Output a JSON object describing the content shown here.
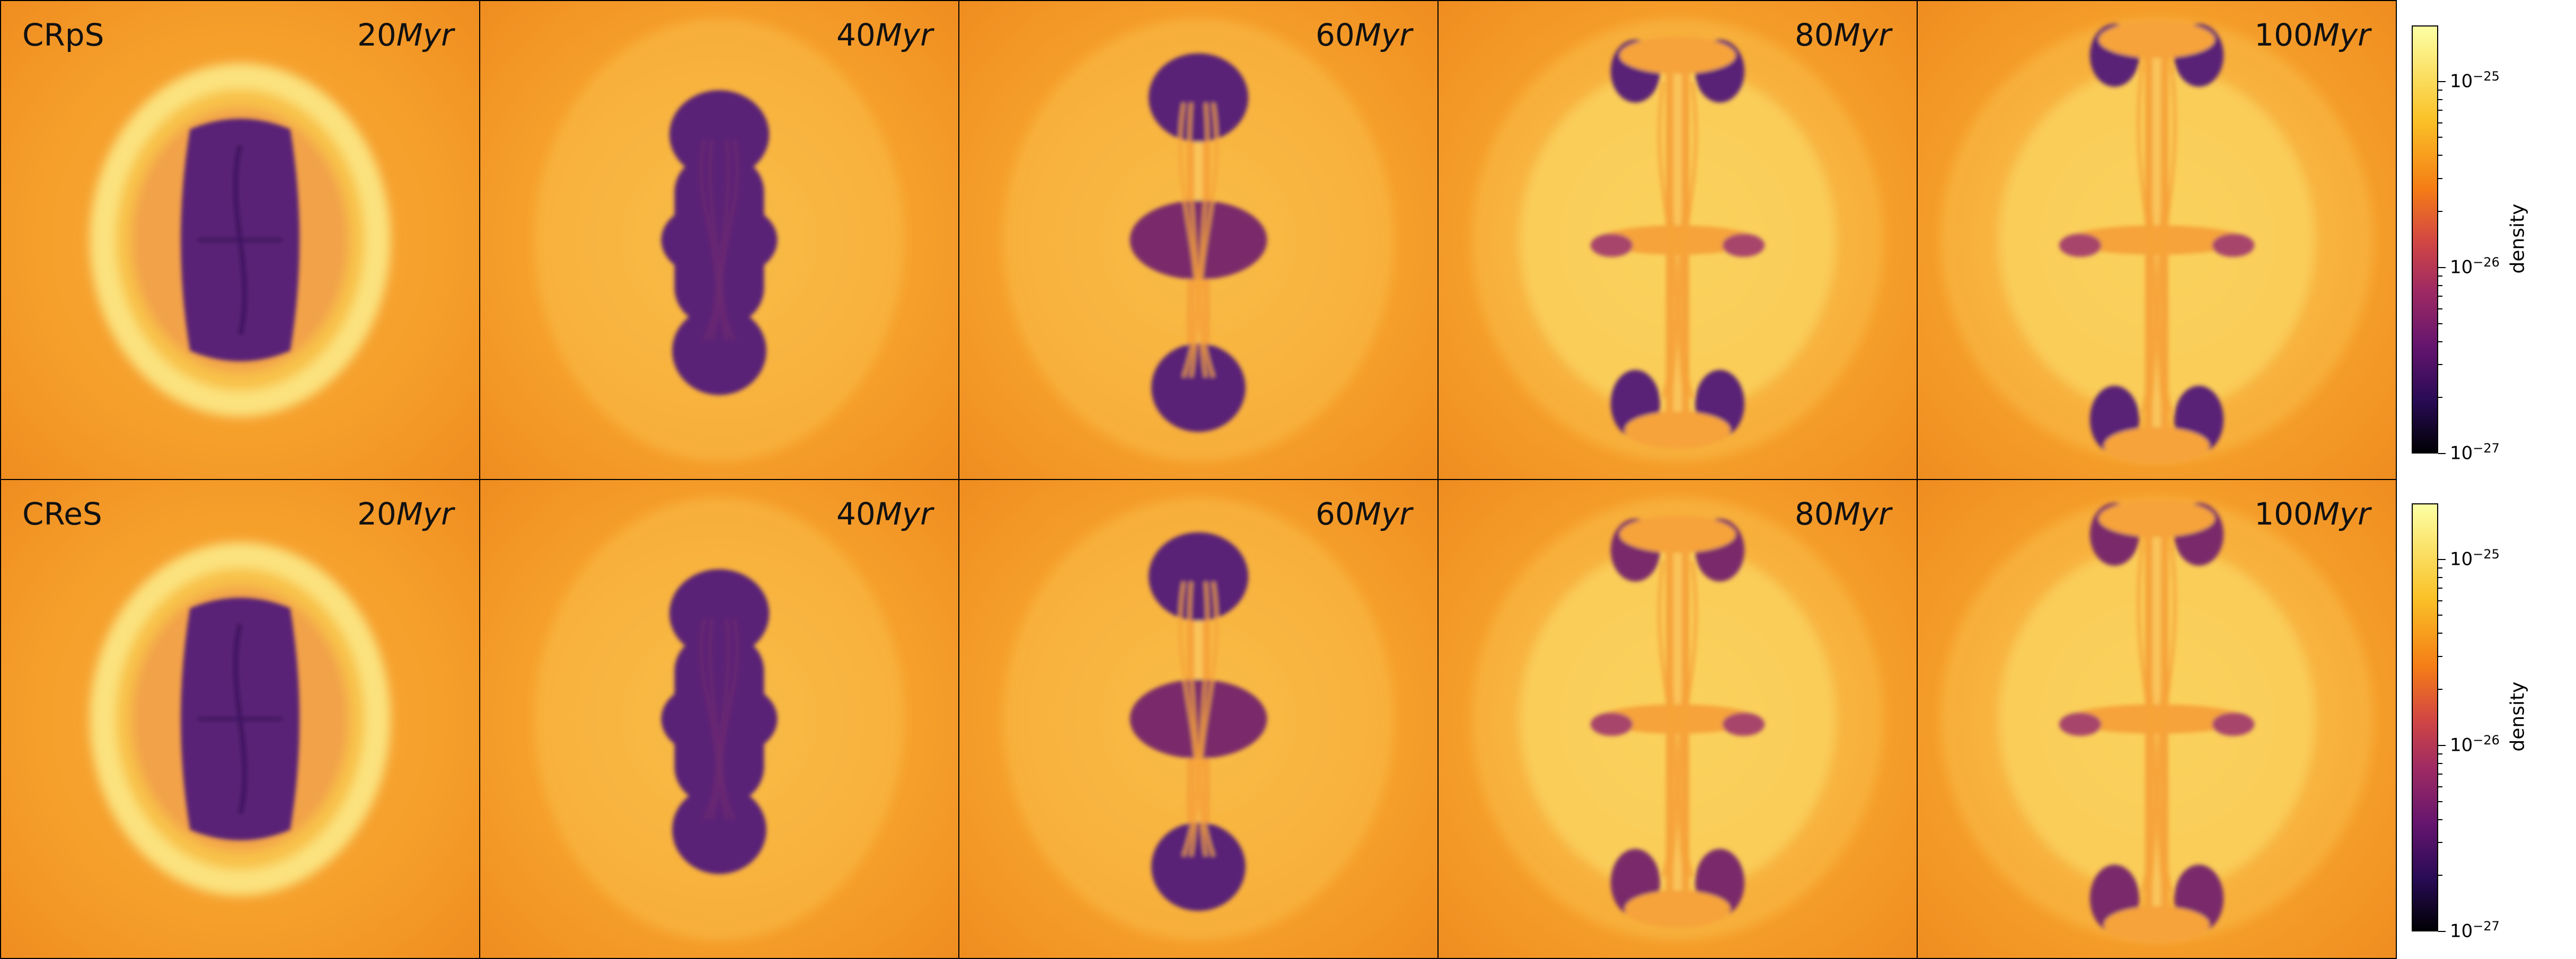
{
  "rows": [
    {
      "sim": "CRpS",
      "panels": [
        {
          "t": "20",
          "unit": "Myr",
          "stage": 0
        },
        {
          "t": "40",
          "unit": "Myr",
          "stage": 1
        },
        {
          "t": "60",
          "unit": "Myr",
          "stage": 2
        },
        {
          "t": "80",
          "unit": "Myr",
          "stage": 3
        },
        {
          "t": "100",
          "unit": "Myr",
          "stage": 4
        }
      ]
    },
    {
      "sim": "CReS",
      "panels": [
        {
          "t": "20",
          "unit": "Myr",
          "stage": 0
        },
        {
          "t": "40",
          "unit": "Myr",
          "stage": 1
        },
        {
          "t": "60",
          "unit": "Myr",
          "stage": 2
        },
        {
          "t": "80",
          "unit": "Myr",
          "stage": 3
        },
        {
          "t": "100",
          "unit": "Myr",
          "stage": 4
        }
      ]
    }
  ],
  "colorbar": {
    "label": "density",
    "colormap": "inferno",
    "scale": "log",
    "range": [
      1e-27,
      2e-25
    ],
    "ticks": [
      {
        "base": "10",
        "exp": "−25",
        "value": 1e-25
      },
      {
        "base": "10",
        "exp": "−26",
        "value": 1e-26
      },
      {
        "base": "10",
        "exp": "−27",
        "value": 1e-27
      }
    ]
  },
  "colors": {
    "background_gas": "#f59a22",
    "shell": "#fbe07a",
    "cavity": "#5b2376",
    "filament": "#f7a43a"
  }
}
